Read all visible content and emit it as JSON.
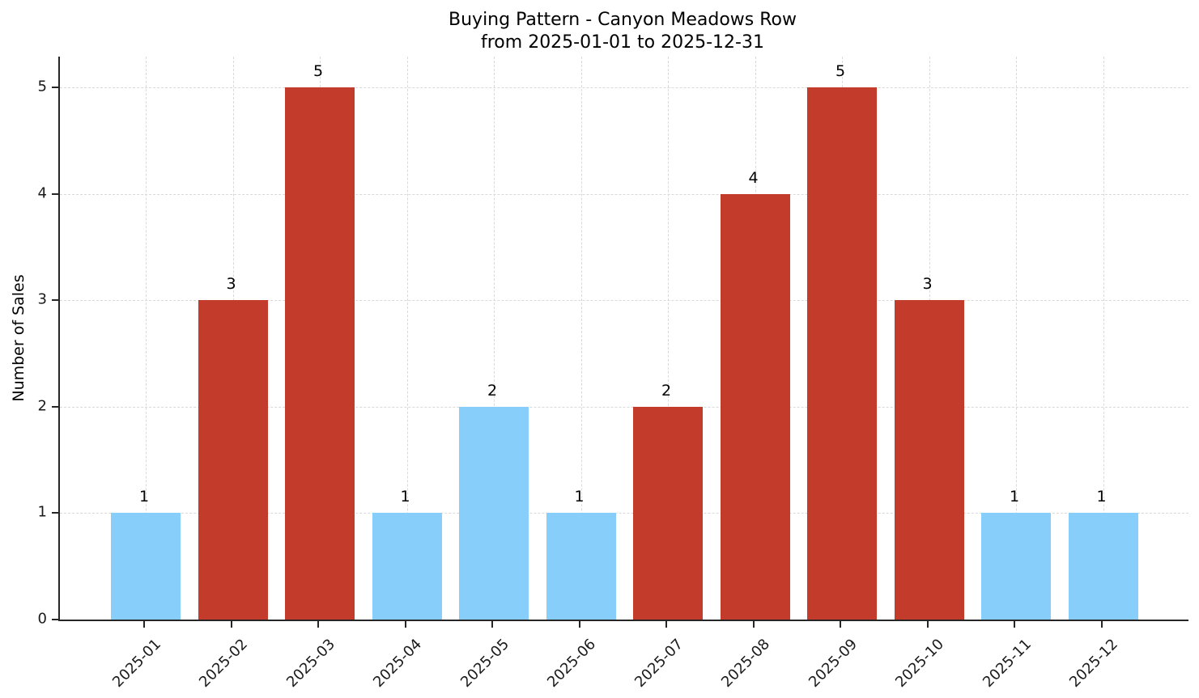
{
  "title": "Buying Pattern - Canyon Meadows Row",
  "subtitle": "from 2025-01-01 to 2025-12-31",
  "chart_data": {
    "type": "bar",
    "title": "Buying Pattern - Canyon Meadows Row",
    "subtitle": "from 2025-01-01 to 2025-12-31",
    "xlabel": "",
    "ylabel": "Number of Sales",
    "categories": [
      "2025-01",
      "2025-02",
      "2025-03",
      "2025-04",
      "2025-05",
      "2025-06",
      "2025-07",
      "2025-08",
      "2025-09",
      "2025-10",
      "2025-11",
      "2025-12"
    ],
    "values": [
      1,
      3,
      5,
      1,
      2,
      1,
      2,
      4,
      5,
      3,
      1,
      1
    ],
    "bar_value_labels": [
      "1",
      "3",
      "5",
      "1",
      "2",
      "1",
      "2",
      "4",
      "5",
      "3",
      "1",
      "1"
    ],
    "bar_colors": [
      "#87CEFA",
      "#C23B2B",
      "#C23B2B",
      "#87CEFA",
      "#87CEFA",
      "#87CEFA",
      "#C23B2B",
      "#C23B2B",
      "#C23B2B",
      "#C23B2B",
      "#87CEFA",
      "#87CEFA"
    ],
    "yticks": [
      0,
      1,
      2,
      3,
      4,
      5
    ],
    "ylim": [
      0,
      5.29
    ],
    "grid": true,
    "grid_style": "dashed",
    "legend": null,
    "colors": {
      "low_bar": "#87CEFA",
      "high_bar": "#C23B2B",
      "grid": "#D9D9D9",
      "spine": "#262626",
      "text": "#111111"
    }
  }
}
